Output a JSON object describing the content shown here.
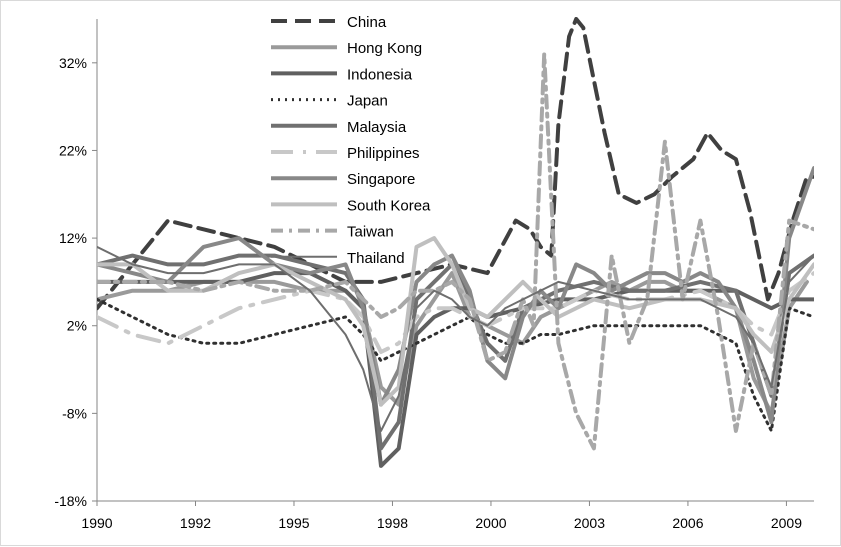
{
  "chart_data": {
    "type": "line",
    "title": "",
    "xlabel": "",
    "ylabel": "",
    "x_tick_labels": [
      "1990",
      "1992",
      "1995",
      "1998",
      "2000",
      "2003",
      "2006",
      "2009"
    ],
    "y_tick_labels": [
      "32%",
      "22%",
      "12%",
      "2%",
      "-8%",
      "-18%"
    ],
    "y_ticks": [
      32,
      22,
      12,
      2,
      -8,
      -18
    ],
    "ylim": [
      -18,
      37
    ],
    "xlim": [
      1990,
      2010.2
    ],
    "grid": false,
    "legend_position": "top-center",
    "series": [
      {
        "name": "China",
        "color": "#404040",
        "dash": "16,8",
        "width": 4,
        "x": [
          1990,
          1991.0,
          1992.0,
          1993.0,
          1994.0,
          1995.0,
          1996.0,
          1997.0,
          1998.0,
          1999.0,
          2000.0,
          2001.0,
          2001.8,
          2002.2,
          2002.5,
          2002.8,
          2003.0,
          2003.3,
          2003.5,
          2003.7,
          2004.0,
          2004.3,
          2004.7,
          2005.2,
          2005.7,
          2006.2,
          2006.8,
          2007.2,
          2007.6,
          2008.0,
          2008.4,
          2008.9,
          2009.2,
          2009.6,
          2010.0,
          2010.2
        ],
        "y": [
          4,
          9,
          14,
          13,
          12,
          11,
          9,
          7,
          7,
          8,
          9,
          8,
          14,
          13,
          11,
          10,
          25,
          35,
          37,
          36,
          30,
          24,
          17,
          16,
          17,
          19,
          21,
          24,
          22,
          21,
          15,
          5,
          8,
          14,
          19,
          19
        ]
      },
      {
        "name": "Hong Kong",
        "color": "#9a9a9a",
        "dash": "",
        "width": 4,
        "x": [
          1990,
          1991.0,
          1992.0,
          1993.0,
          1994.0,
          1995.0,
          1996.0,
          1997.0,
          1997.5,
          1998.0,
          1998.5,
          1999.0,
          1999.5,
          2000.0,
          2000.5,
          2001.0,
          2001.5,
          2002.0,
          2002.5,
          2003.0,
          2003.5,
          2004.0,
          2004.5,
          2005.0,
          2005.5,
          2006.0,
          2006.5,
          2007.0,
          2007.5,
          2008.0,
          2008.5,
          2009.0,
          2009.5,
          2010.0
        ],
        "y": [
          5,
          6,
          6,
          7,
          7,
          7,
          6,
          6,
          4,
          -5,
          -7,
          2,
          5,
          8,
          3,
          2,
          1,
          0,
          3,
          4,
          5,
          6,
          7,
          6,
          7,
          7,
          6,
          6,
          5,
          4,
          -4,
          -8,
          4,
          7
        ]
      },
      {
        "name": "Indonesia",
        "color": "#606060",
        "dash": "",
        "width": 4,
        "x": [
          1990,
          1991.0,
          1992.0,
          1993.0,
          1994.0,
          1995.0,
          1996.0,
          1997.0,
          1997.5,
          1998.0,
          1998.5,
          1999.0,
          1999.5,
          2000.0,
          2000.5,
          2001.0,
          2002.0,
          2003.0,
          2004.0,
          2005.0,
          2006.0,
          2007.0,
          2008.0,
          2009.0,
          2009.5,
          2010.2
        ],
        "y": [
          7,
          7,
          7,
          7,
          7,
          8,
          8,
          6,
          4,
          -14,
          -12,
          1,
          3,
          4,
          4,
          3,
          4,
          5,
          5,
          6,
          6,
          6,
          6,
          4,
          5,
          5
        ]
      },
      {
        "name": "Japan",
        "color": "#303030",
        "dash": "2,5",
        "width": 3,
        "x": [
          1990,
          1991.0,
          1992.0,
          1993.0,
          1994.0,
          1995.0,
          1996.0,
          1997.0,
          1997.5,
          1998.0,
          1998.5,
          1999.0,
          1999.5,
          2000.0,
          2000.5,
          2001.0,
          2001.5,
          2002.0,
          2002.5,
          2003.0,
          2004.0,
          2005.0,
          2006.0,
          2007.0,
          2008.0,
          2008.5,
          2009.0,
          2009.5,
          2010.2
        ],
        "y": [
          5,
          3,
          1,
          0,
          0,
          1,
          2,
          3,
          1,
          -2,
          -1,
          0,
          1,
          2,
          3,
          1,
          0,
          0,
          1,
          1,
          2,
          2,
          2,
          2,
          0,
          -6,
          -10,
          4,
          3
        ]
      },
      {
        "name": "Malaysia",
        "color": "#707070",
        "dash": "",
        "width": 4,
        "x": [
          1990,
          1991.0,
          1992.0,
          1993.0,
          1994.0,
          1995.0,
          1996.0,
          1997.0,
          1997.5,
          1998.0,
          1998.5,
          1999.0,
          1999.5,
          2000.0,
          2000.5,
          2001.0,
          2001.5,
          2002.0,
          2003.0,
          2004.0,
          2005.0,
          2006.0,
          2007.0,
          2008.0,
          2008.5,
          2009.0,
          2009.5,
          2010.2
        ],
        "y": [
          9,
          10,
          9,
          9,
          10,
          10,
          9,
          8,
          5,
          -12,
          -9,
          5,
          7,
          9,
          5,
          0,
          -2,
          4,
          6,
          7,
          6,
          6,
          7,
          6,
          0,
          -6,
          8,
          10
        ]
      },
      {
        "name": "Philippines",
        "color": "#c8c8c8",
        "dash": "22,10,3,10",
        "width": 4,
        "x": [
          1990,
          1991.0,
          1992.0,
          1993.0,
          1994.0,
          1995.0,
          1996.0,
          1997.0,
          1997.5,
          1998.0,
          1998.5,
          1999.0,
          1999.5,
          2000.0,
          2000.5,
          2001.0,
          2001.5,
          2002.0,
          2003.0,
          2004.0,
          2005.0,
          2006.0,
          2007.0,
          2008.0,
          2008.5,
          2009.0,
          2009.5,
          2010.2
        ],
        "y": [
          3,
          1,
          0,
          2,
          4,
          5,
          6,
          5,
          3,
          -1,
          0,
          3,
          4,
          4,
          3,
          2,
          3,
          4,
          4,
          6,
          5,
          5,
          6,
          4,
          2,
          1,
          6,
          8
        ]
      },
      {
        "name": "Singapore",
        "color": "#888888",
        "dash": "",
        "width": 4,
        "x": [
          1990,
          1991.0,
          1992.0,
          1993.0,
          1994.0,
          1995.0,
          1996.0,
          1997.0,
          1997.5,
          1998.0,
          1998.5,
          1999.0,
          1999.5,
          2000.0,
          2000.5,
          2001.0,
          2001.5,
          2002.0,
          2002.5,
          2003.0,
          2003.5,
          2004.0,
          2004.5,
          2005.0,
          2005.5,
          2006.0,
          2006.5,
          2007.0,
          2007.5,
          2008.0,
          2008.5,
          2009.0,
          2009.5,
          2010.2
        ],
        "y": [
          9,
          8,
          7,
          11,
          12,
          9,
          8,
          9,
          4,
          -7,
          -3,
          7,
          9,
          10,
          6,
          -2,
          -4,
          3,
          6,
          4,
          9,
          8,
          6,
          7,
          8,
          8,
          7,
          8,
          7,
          4,
          -2,
          -9,
          12,
          20
        ]
      },
      {
        "name": "South Korea",
        "color": "#bfbfbf",
        "dash": "",
        "width": 4,
        "x": [
          1990,
          1991.0,
          1992.0,
          1993.0,
          1994.0,
          1995.0,
          1996.0,
          1997.0,
          1997.5,
          1998.0,
          1998.5,
          1999.0,
          1999.5,
          2000.0,
          2000.5,
          2001.0,
          2001.5,
          2002.0,
          2003.0,
          2004.0,
          2005.0,
          2006.0,
          2007.0,
          2008.0,
          2008.5,
          2009.0,
          2009.5,
          2010.2
        ],
        "y": [
          9,
          9,
          6,
          6,
          8,
          9,
          7,
          5,
          2,
          -7,
          -5,
          11,
          12,
          9,
          4,
          3,
          5,
          7,
          3,
          5,
          4,
          5,
          5,
          4,
          1,
          -1,
          5,
          9
        ]
      },
      {
        "name": "Taiwan",
        "color": "#a8a8a8",
        "dash": "12,6,3,6",
        "width": 4,
        "x": [
          1990,
          1991.0,
          1992.0,
          1993.0,
          1994.0,
          1995.0,
          1996.0,
          1997.0,
          1997.5,
          1998.0,
          1998.5,
          1999.0,
          1999.5,
          2000.0,
          2000.5,
          2001.0,
          2001.5,
          2002.0,
          2002.3,
          2002.6,
          2003.0,
          2003.5,
          2004.0,
          2004.5,
          2005.0,
          2005.5,
          2006.0,
          2006.5,
          2007.0,
          2007.5,
          2008.0,
          2008.5,
          2009.0,
          2009.5,
          2010.2
        ],
        "y": [
          7,
          7,
          7,
          6,
          7,
          6,
          6,
          7,
          5,
          3,
          4,
          6,
          6,
          7,
          5,
          -2,
          -1,
          5,
          2,
          33,
          0,
          -8,
          -12,
          10,
          0,
          5,
          23,
          5,
          14,
          3,
          -10,
          0,
          -6,
          14,
          13
        ]
      },
      {
        "name": "Thailand",
        "color": "#6e6e6e",
        "dash": "",
        "width": 2,
        "x": [
          1990,
          1991.0,
          1992.0,
          1993.0,
          1994.0,
          1995.0,
          1996.0,
          1997.0,
          1997.5,
          1998.0,
          1998.5,
          1999.0,
          1999.5,
          2000.0,
          2000.5,
          2001.0,
          2001.5,
          2002.0,
          2003.0,
          2004.0,
          2005.0,
          2006.0,
          2007.0,
          2008.0,
          2008.5,
          2009.0,
          2009.5,
          2010.2
        ],
        "y": [
          11,
          9,
          8,
          8,
          9,
          9,
          6,
          1,
          -3,
          -10,
          -6,
          4,
          6,
          5,
          3,
          2,
          4,
          5,
          7,
          6,
          5,
          5,
          5,
          3,
          0,
          -5,
          7,
          10
        ]
      }
    ]
  }
}
